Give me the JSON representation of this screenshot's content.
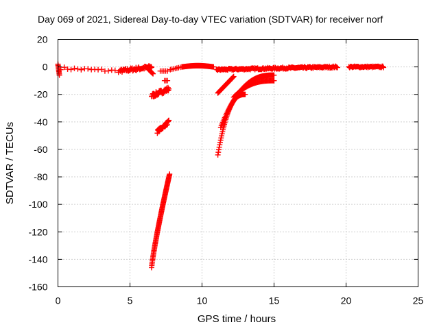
{
  "chart_data": {
    "type": "scatter",
    "title": "Day 069 of 2021, Sidereal Day-to-day VTEC variation (SDTVAR) for receiver norf",
    "xlabel": "GPS time / hours",
    "ylabel": "SDTVAR / TECUs",
    "xlim": [
      0,
      25
    ],
    "ylim": [
      -160,
      20
    ],
    "xticks": [
      0,
      5,
      10,
      15,
      20,
      25
    ],
    "yticks": [
      -160,
      -140,
      -120,
      -100,
      -80,
      -60,
      -40,
      -20,
      0,
      20
    ],
    "grid": true,
    "marker": "plus",
    "color": "#ff0000",
    "series": [
      {
        "segments": [
          {
            "x0": 0.0,
            "x1": 0.1,
            "n": 10,
            "y": [
              2,
              -6
            ],
            "shape": "linear"
          },
          {
            "x0": 0.2,
            "x1": 4.2,
            "n": 18,
            "y": [
              -1,
              -3
            ],
            "shape": "linear",
            "jitter": 1.0
          },
          {
            "x0": 4.3,
            "x1": 6.5,
            "n": 60,
            "y": [
              -3,
              0
            ],
            "shape": "linear",
            "jitter": 1.2
          },
          {
            "x0": 6.3,
            "x1": 6.6,
            "n": 8,
            "y": [
              -2,
              -5
            ],
            "shape": "linear"
          },
          {
            "x0": 6.5,
            "x1": 7.7,
            "n": 40,
            "y": [
              -21,
              -16
            ],
            "shape": "linear",
            "jitter": 1.5
          },
          {
            "x0": 7.1,
            "x1": 7.6,
            "n": 5,
            "y": [
              -3,
              -3
            ],
            "shape": "linear"
          },
          {
            "x0": 7.4,
            "x1": 7.6,
            "n": 3,
            "y": [
              -10,
              -10
            ],
            "shape": "linear"
          },
          {
            "x0": 6.9,
            "x1": 7.7,
            "n": 30,
            "y": [
              -47,
              -40
            ],
            "shape": "linear",
            "jitter": 1.2
          },
          {
            "x0": 6.5,
            "x1": 7.75,
            "n": 90,
            "y": [
              -146,
              -78
            ],
            "shape": "curve"
          },
          {
            "x0": 7.8,
            "x1": 8.6,
            "n": 8,
            "y": [
              -2,
              0
            ],
            "shape": "linear"
          },
          {
            "x0": 8.6,
            "x1": 10.8,
            "n": 50,
            "y": [
              0,
              1
            ],
            "shape": "bump"
          },
          {
            "x0": 11.0,
            "x1": 19.4,
            "n": 180,
            "y": [
              -2,
              0
            ],
            "shape": "linear",
            "jitter": 0.6
          },
          {
            "x0": 20.2,
            "x1": 22.6,
            "n": 50,
            "y": [
              0,
              0
            ],
            "shape": "linear",
            "jitter": 0.5
          },
          {
            "x0": 11.1,
            "x1": 13.0,
            "n": 60,
            "y": [
              -64,
              -20
            ],
            "shape": "fastrise"
          },
          {
            "x0": 11.3,
            "x1": 15.0,
            "n": 80,
            "y": [
              -44,
              -6
            ],
            "shape": "fastrise"
          },
          {
            "x0": 11.1,
            "x1": 12.2,
            "n": 30,
            "y": [
              -19,
              -7
            ],
            "shape": "linear"
          },
          {
            "x0": 12.2,
            "x1": 15.0,
            "n": 50,
            "y": [
              -22,
              -10
            ],
            "shape": "fastrise"
          }
        ]
      }
    ]
  }
}
